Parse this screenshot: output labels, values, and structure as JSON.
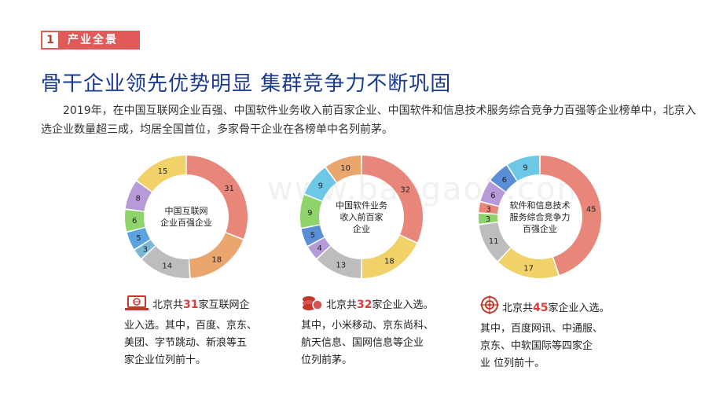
{
  "section": {
    "number": "1",
    "title": "产业全景"
  },
  "headline": "骨干企业领先优势明显 集群竞争力不断巩固",
  "paragraph": "2019年，在中国互联网企业百强、中国软件业务收入前百家企业、中国软件和信息技术服务综合竞争力百强等企业榜单中，北京入选企业数量超三成，均居全国首位，多家骨干企业在各榜单中名列前茅。",
  "watermark": "www.baogao8.com",
  "colors": {
    "accent": "#e05a5a",
    "headline": "#1a3a8f",
    "highlight": "#e03a3a"
  },
  "chart_data": [
    {
      "type": "donut",
      "center_label": "中国互联网\n企业百强企业",
      "slices": [
        {
          "value": 31,
          "color": "#e8867a"
        },
        {
          "value": 18,
          "color": "#eba66e"
        },
        {
          "value": 14,
          "color": "#bdbdbd"
        },
        {
          "value": 3,
          "color": "#7ab8d6"
        },
        {
          "value": 5,
          "color": "#5ba3e0"
        },
        {
          "value": 6,
          "color": "#8ed46a"
        },
        {
          "value": 8,
          "color": "#b69bd8"
        },
        {
          "value": 15,
          "color": "#f0d268"
        }
      ]
    },
    {
      "type": "donut",
      "center_label": "中国软件业务\n收入前百家\n企业",
      "slices": [
        {
          "value": 32,
          "color": "#e8867a"
        },
        {
          "value": 18,
          "color": "#f0d268"
        },
        {
          "value": 13,
          "color": "#bdbdbd"
        },
        {
          "value": 4,
          "color": "#b69bd8"
        },
        {
          "value": 5,
          "color": "#5b8ed6"
        },
        {
          "value": 9,
          "color": "#8ed46a"
        },
        {
          "value": 9,
          "color": "#6cc8e6"
        },
        {
          "value": 10,
          "color": "#eba66e"
        }
      ]
    },
    {
      "type": "donut",
      "center_label": "软件和信息技术\n服务综合竞争力\n百强企业",
      "slices": [
        {
          "value": 45,
          "color": "#e8867a"
        },
        {
          "value": 17,
          "color": "#f0d268"
        },
        {
          "value": 11,
          "color": "#bdbdbd"
        },
        {
          "value": 3,
          "color": "#8ed46a"
        },
        {
          "value": 3,
          "color": "#e8867a"
        },
        {
          "value": 6,
          "color": "#b69bd8"
        },
        {
          "value": 6,
          "color": "#5b8ed6"
        },
        {
          "value": 9,
          "color": "#6cc8e6"
        }
      ]
    }
  ],
  "captions": [
    {
      "icon": "laptop-icon",
      "pre": "北京共",
      "num": "31",
      "post": "家互联网企\n业入选。其中，百度、京东、\n美团、字节跳动、新浪等五\n家企业位列前十。"
    },
    {
      "icon": "coins-icon",
      "pre": "北京共",
      "num": "32",
      "post": "家企业入选。\n其中，小米移动、京东尚科、\n航天信息、国网信息等企业\n位列前茅。"
    },
    {
      "icon": "target-icon",
      "pre": "北京共",
      "num": "45",
      "post": "家企业入选。\n其中，百度网讯、中通服、\n京东、中软国际等四家企\n业  位列前十。"
    }
  ]
}
